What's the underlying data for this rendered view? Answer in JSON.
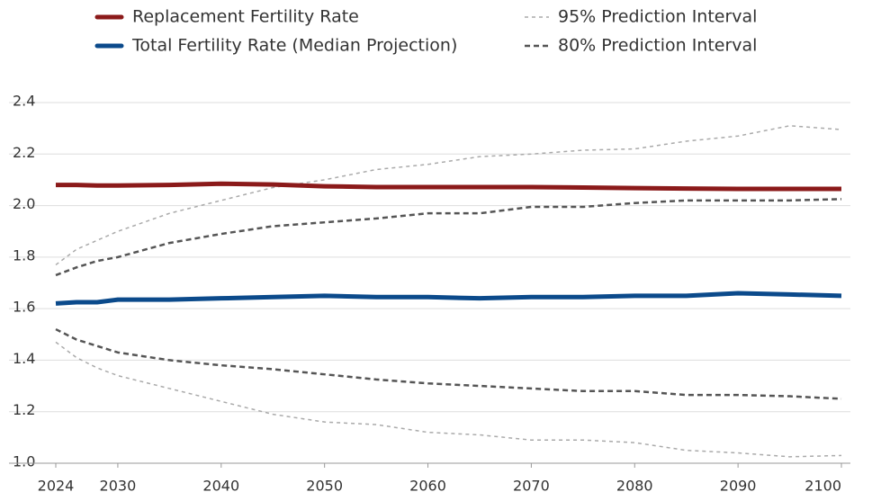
{
  "chart_data": {
    "type": "line",
    "x": [
      2024,
      2026,
      2028,
      2030,
      2035,
      2040,
      2045,
      2050,
      2055,
      2060,
      2065,
      2070,
      2075,
      2080,
      2085,
      2090,
      2095,
      2100
    ],
    "series": [
      {
        "name": "Replacement Fertility Rate",
        "color": "#8b1a1a",
        "width": 5,
        "values": [
          2.08,
          2.08,
          2.078,
          2.078,
          2.08,
          2.085,
          2.082,
          2.075,
          2.072,
          2.072,
          2.072,
          2.072,
          2.07,
          2.068,
          2.066,
          2.065,
          2.065,
          2.065
        ]
      },
      {
        "name": "Total Fertility Rate (Median Projection)",
        "color": "#0b4a8b",
        "width": 5,
        "values": [
          1.62,
          1.625,
          1.625,
          1.635,
          1.635,
          1.64,
          1.645,
          1.65,
          1.645,
          1.645,
          1.64,
          1.645,
          1.645,
          1.65,
          1.65,
          1.66,
          1.655,
          1.65
        ]
      },
      {
        "name": "95% Prediction Interval",
        "color": "#aaaaaa",
        "width": 1.5,
        "dash": "4 4",
        "upper": [
          1.77,
          1.83,
          1.865,
          1.9,
          1.97,
          2.02,
          2.07,
          2.1,
          2.14,
          2.16,
          2.19,
          2.2,
          2.215,
          2.22,
          2.25,
          2.27,
          2.31,
          2.295
        ],
        "lower": [
          1.47,
          1.41,
          1.37,
          1.34,
          1.29,
          1.24,
          1.19,
          1.16,
          1.15,
          1.12,
          1.11,
          1.09,
          1.09,
          1.08,
          1.05,
          1.04,
          1.025,
          1.03
        ]
      },
      {
        "name": "80% Prediction Interval",
        "color": "#555555",
        "width": 2.5,
        "dash": "6 4",
        "upper": [
          1.73,
          1.76,
          1.785,
          1.8,
          1.855,
          1.89,
          1.92,
          1.935,
          1.95,
          1.97,
          1.97,
          1.995,
          1.995,
          2.01,
          2.02,
          2.02,
          2.02,
          2.025
        ],
        "lower": [
          1.52,
          1.48,
          1.455,
          1.43,
          1.4,
          1.38,
          1.365,
          1.345,
          1.325,
          1.31,
          1.3,
          1.29,
          1.28,
          1.28,
          1.265,
          1.265,
          1.26,
          1.25
        ]
      }
    ],
    "xlim": [
      2024,
      2100
    ],
    "xticks": [
      2024,
      2030,
      2040,
      2050,
      2060,
      2070,
      2080,
      2090,
      2100
    ],
    "ylim": [
      1,
      2.4
    ],
    "yticks": [
      {
        "value": 1,
        "label": "1.0"
      },
      1.2,
      1.4,
      1.6,
      1.8,
      {
        "value": 2,
        "label": "2.0"
      },
      2.2,
      2.4
    ],
    "grid": true,
    "legend": "top"
  }
}
